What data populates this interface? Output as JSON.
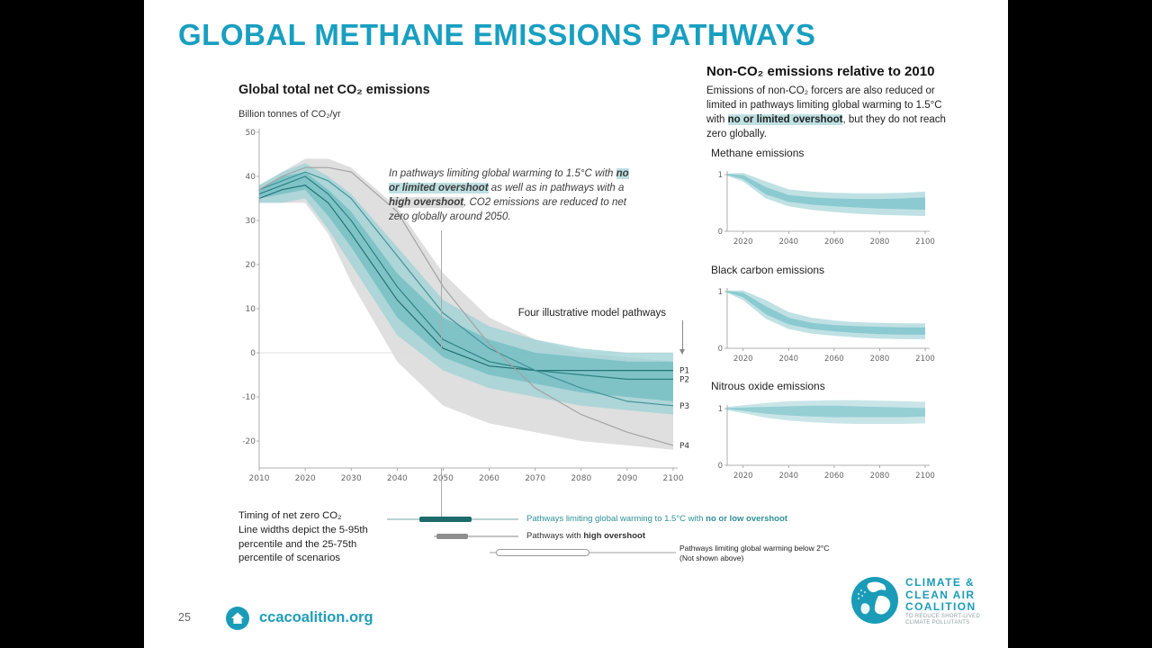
{
  "slide": {
    "title": "GLOBAL METHANE EMISSIONS PATHWAYS",
    "page_number": "25",
    "footer_link": "ccacoalition.org",
    "logo": {
      "line1": "CLIMATE &",
      "line2": "CLEAN AIR",
      "line3": "COALITION",
      "tagline1": "TO REDUCE SHORT-LIVED",
      "tagline2": "CLIMATE POLLUTANTS"
    }
  },
  "main_chart": {
    "title": "Global total net CO₂ emissions",
    "unit": "Billion tonnes of CO₂/yr",
    "annotation": {
      "pre": "In pathways limiting global warming to 1.5°C with ",
      "hl1": "no or limited overshoot",
      "mid": " as well as in pathways with a ",
      "hl2": "high overshoot",
      "post": ", CO2 emissions are reduced to net zero globally around 2050."
    },
    "pathways_callout": "Four illustrative model pathways"
  },
  "right_panel": {
    "heading": "Non-CO₂ emissions relative to 2010",
    "body": {
      "pre": "Emissions of non-CO₂ forcers are also reduced or limited in pathways limiting global warming to 1.5°C with ",
      "hl": "no or limited overshoot",
      "post": ", but they do not reach zero globally."
    },
    "chart_labels": [
      "Methane emissions",
      "Black carbon emissions",
      "Nitrous oxide emissions"
    ]
  },
  "legend": {
    "left": [
      "Timing of net zero CO₂",
      "Line widths depict the 5-95th",
      "percentile and the 25-75th",
      "percentile of scenarios"
    ],
    "items": [
      {
        "pre": "Pathways limiting global warming to 1.5°C with ",
        "bold": "no or low overshoot"
      },
      {
        "pre": "Pathways with ",
        "bold": "high overshoot"
      },
      {
        "line1": "Pathways limiting global warming below 2°C",
        "line2": "(Not shown above)"
      }
    ]
  },
  "colors": {
    "accent_teal": "#189FC0",
    "logo_teal": "#1A9CB8",
    "band_grey": "#DCDCDC",
    "band_teal_light": "#9ED2D5",
    "band_teal_dark": "#6FBCC1",
    "line_teal": "#1F6F6F",
    "line_grey": "#A0A0A0",
    "highlight_teal_bg": "#BEE0E2",
    "highlight_grey_bg": "#DDDDDD"
  },
  "chart_data": [
    {
      "id": "main",
      "type": "area",
      "title": "Global total net CO₂ emissions",
      "ylabel": "Billion tonnes of CO₂/yr",
      "xlim": [
        2010,
        2100
      ],
      "ylim": [
        -20,
        50
      ],
      "xticks": [
        2010,
        2020,
        2030,
        2040,
        2050,
        2060,
        2070,
        2080,
        2090,
        2100
      ],
      "yticks": [
        -20,
        -10,
        0,
        10,
        20,
        30,
        40,
        50
      ],
      "x": [
        2010,
        2015,
        2020,
        2025,
        2030,
        2040,
        2050,
        2060,
        2070,
        2080,
        2090,
        2100
      ],
      "bands": [
        {
          "name": "high-overshoot-range-5-95",
          "color": "#dcdcdc",
          "opacity": 0.9,
          "upper": [
            38,
            41,
            44,
            44,
            42,
            33,
            18,
            8,
            3,
            0,
            -1,
            -2
          ],
          "lower": [
            34,
            34,
            34,
            27,
            16,
            -2,
            -12,
            -16,
            -18,
            -20,
            -21,
            -22
          ]
        },
        {
          "name": "1.5C-no-low-overshoot-5-95",
          "color": "#9ed2d5",
          "opacity": 0.75,
          "upper": [
            38,
            41,
            43,
            40,
            36,
            24,
            12,
            6,
            3,
            1,
            0,
            0
          ],
          "lower": [
            34,
            34,
            35,
            28,
            20,
            4,
            -4,
            -8,
            -10,
            -12,
            -13,
            -14
          ]
        },
        {
          "name": "1.5C-no-low-overshoot-25-75",
          "color": "#6fbcc1",
          "opacity": 0.75,
          "upper": [
            37,
            40,
            41,
            37,
            32,
            18,
            8,
            3,
            0,
            -1,
            -2,
            -2
          ],
          "lower": [
            35,
            36,
            37,
            31,
            24,
            8,
            -1,
            -5,
            -7,
            -9,
            -10,
            -11
          ]
        }
      ],
      "series": [
        {
          "name": "P1",
          "label": "P1",
          "color": "#1f6f6f",
          "width": 1.2,
          "values": [
            35,
            37,
            38,
            34,
            27,
            12,
            1,
            -3,
            -4,
            -4,
            -4,
            -4
          ]
        },
        {
          "name": "P2",
          "label": "P2",
          "color": "#2a7d7d",
          "width": 1.2,
          "values": [
            36,
            38,
            40,
            36,
            30,
            15,
            3,
            -2,
            -4,
            -5,
            -6,
            -6
          ]
        },
        {
          "name": "P3",
          "label": "P3",
          "color": "#3f9096",
          "width": 1.2,
          "values": [
            37,
            39,
            41,
            39,
            35,
            22,
            9,
            1,
            -4,
            -8,
            -11,
            -12
          ]
        },
        {
          "name": "P4",
          "label": "P4",
          "color": "#a0a0a0",
          "width": 1.2,
          "values": [
            37,
            40,
            42,
            42,
            41,
            32,
            15,
            2,
            -8,
            -14,
            -18,
            -21
          ]
        }
      ]
    },
    {
      "id": "methane",
      "type": "area",
      "title": "Methane emissions",
      "xlim": [
        2013,
        2100
      ],
      "ylim": [
        0,
        1
      ],
      "xticks": [
        2020,
        2040,
        2060,
        2080,
        2100
      ],
      "yticks": [
        0,
        1
      ],
      "x": [
        2013,
        2020,
        2030,
        2040,
        2050,
        2060,
        2070,
        2080,
        2090,
        2100
      ],
      "bands": [
        {
          "name": "range-5-95",
          "color": "#b9dee1",
          "opacity": 0.9,
          "upper": [
            1.02,
            1.03,
            0.88,
            0.74,
            0.7,
            0.68,
            0.67,
            0.67,
            0.68,
            0.7
          ],
          "lower": [
            0.98,
            0.88,
            0.58,
            0.44,
            0.38,
            0.34,
            0.31,
            0.29,
            0.28,
            0.27
          ]
        },
        {
          "name": "range-25-75",
          "color": "#84c8cd",
          "opacity": 0.9,
          "upper": [
            1.01,
            0.99,
            0.78,
            0.64,
            0.6,
            0.58,
            0.57,
            0.57,
            0.58,
            0.6
          ],
          "lower": [
            0.99,
            0.92,
            0.65,
            0.52,
            0.47,
            0.44,
            0.42,
            0.4,
            0.39,
            0.38
          ]
        }
      ],
      "series": []
    },
    {
      "id": "blackcarbon",
      "type": "area",
      "title": "Black carbon emissions",
      "xlim": [
        2013,
        2100
      ],
      "ylim": [
        0,
        1
      ],
      "xticks": [
        2020,
        2040,
        2060,
        2080,
        2100
      ],
      "yticks": [
        0,
        1
      ],
      "x": [
        2013,
        2020,
        2030,
        2040,
        2050,
        2060,
        2070,
        2080,
        2090,
        2100
      ],
      "bands": [
        {
          "name": "range-5-95",
          "color": "#b9dee1",
          "opacity": 0.9,
          "upper": [
            1.02,
            1.02,
            0.85,
            0.64,
            0.54,
            0.49,
            0.46,
            0.45,
            0.44,
            0.44
          ],
          "lower": [
            0.98,
            0.85,
            0.52,
            0.34,
            0.26,
            0.22,
            0.19,
            0.17,
            0.16,
            0.16
          ]
        },
        {
          "name": "range-25-75",
          "color": "#84c8cd",
          "opacity": 0.9,
          "upper": [
            1.01,
            0.98,
            0.74,
            0.54,
            0.45,
            0.41,
            0.39,
            0.38,
            0.37,
            0.37
          ],
          "lower": [
            0.99,
            0.9,
            0.6,
            0.42,
            0.34,
            0.3,
            0.27,
            0.25,
            0.24,
            0.24
          ]
        }
      ],
      "series": []
    },
    {
      "id": "nitrous",
      "type": "area",
      "title": "Nitrous oxide emissions",
      "xlim": [
        2013,
        2100
      ],
      "ylim": [
        0,
        1
      ],
      "xticks": [
        2020,
        2040,
        2060,
        2080,
        2100
      ],
      "yticks": [
        0,
        1
      ],
      "x": [
        2013,
        2020,
        2030,
        2040,
        2050,
        2060,
        2070,
        2080,
        2090,
        2100
      ],
      "bands": [
        {
          "name": "range-5-95",
          "color": "#c3e2e5",
          "opacity": 0.9,
          "upper": [
            1.03,
            1.06,
            1.1,
            1.13,
            1.14,
            1.15,
            1.15,
            1.14,
            1.13,
            1.12
          ],
          "lower": [
            0.97,
            0.92,
            0.84,
            0.79,
            0.76,
            0.74,
            0.73,
            0.73,
            0.73,
            0.74
          ]
        },
        {
          "name": "range-25-75",
          "color": "#8fccd1",
          "opacity": 0.9,
          "upper": [
            1.01,
            1.02,
            1.03,
            1.04,
            1.05,
            1.05,
            1.04,
            1.03,
            1.02,
            1.01
          ],
          "lower": [
            0.99,
            0.96,
            0.91,
            0.88,
            0.86,
            0.85,
            0.85,
            0.85,
            0.85,
            0.86
          ]
        }
      ],
      "series": []
    }
  ]
}
